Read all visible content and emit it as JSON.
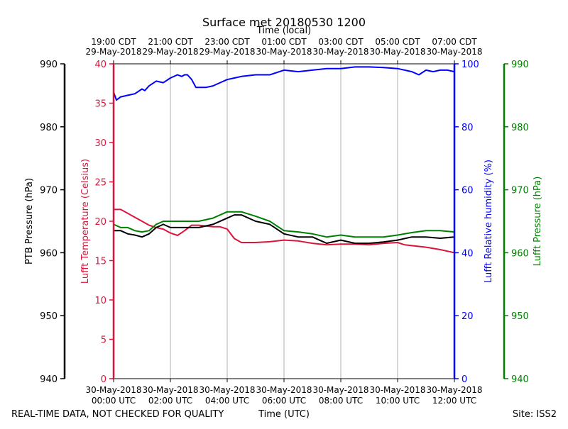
{
  "chart_data": {
    "type": "line",
    "title": "Surface met 20180530 1200",
    "top_axis_label": "Time (local)",
    "top_ticks": [
      {
        "t": 0,
        "line1": "19:00 CDT",
        "line2": "29-May-2018"
      },
      {
        "t": 2,
        "line1": "21:00 CDT",
        "line2": "29-May-2018"
      },
      {
        "t": 4,
        "line1": "23:00 CDT",
        "line2": "29-May-2018"
      },
      {
        "t": 6,
        "line1": "01:00 CDT",
        "line2": "30-May-2018"
      },
      {
        "t": 8,
        "line1": "03:00 CDT",
        "line2": "30-May-2018"
      },
      {
        "t": 10,
        "line1": "05:00 CDT",
        "line2": "30-May-2018"
      },
      {
        "t": 12,
        "line1": "07:00 CDT",
        "line2": "30-May-2018"
      }
    ],
    "bottom_axis_label": "Time (UTC)",
    "bottom_ticks": [
      {
        "t": 0,
        "line1": "30-May-2018",
        "line2": "00:00 UTC"
      },
      {
        "t": 2,
        "line1": "30-May-2018",
        "line2": "02:00 UTC"
      },
      {
        "t": 4,
        "line1": "30-May-2018",
        "line2": "04:00 UTC"
      },
      {
        "t": 6,
        "line1": "30-May-2018",
        "line2": "06:00 UTC"
      },
      {
        "t": 8,
        "line1": "30-May-2018",
        "line2": "08:00 UTC"
      },
      {
        "t": 10,
        "line1": "30-May-2018",
        "line2": "10:00 UTC"
      },
      {
        "t": 12,
        "line1": "30-May-2018",
        "line2": "12:00 UTC"
      }
    ],
    "xlim": [
      0,
      12
    ],
    "grid": true,
    "axes": {
      "ptb": {
        "label": "PTB Pressure (hPa)",
        "ylim": [
          940,
          990
        ],
        "ticks": [
          940,
          950,
          960,
          970,
          980,
          990
        ],
        "color": "#000000"
      },
      "temp": {
        "label": "Lufft Temperature (Celsius)",
        "ylim": [
          0,
          40
        ],
        "ticks": [
          0,
          5,
          10,
          15,
          20,
          25,
          30,
          35,
          40
        ],
        "color": "#dc143c"
      },
      "rh": {
        "label": "Lufft Relative humidity (%)",
        "ylim": [
          0,
          100
        ],
        "ticks": [
          0,
          20,
          40,
          60,
          80,
          100
        ],
        "color": "#0000ff"
      },
      "lufft_p": {
        "label": "Lufft Pressure (hPa)",
        "ylim": [
          940,
          990
        ],
        "ticks": [
          940,
          950,
          960,
          970,
          980,
          990
        ],
        "color": "#008000"
      }
    },
    "series": [
      {
        "name": "Lufft Relative humidity",
        "axis": "rh",
        "color": "#0000ff",
        "x": [
          0,
          0.1,
          0.25,
          0.5,
          0.75,
          1.0,
          1.1,
          1.25,
          1.5,
          1.75,
          2.0,
          2.25,
          2.4,
          2.5,
          2.6,
          2.75,
          2.9,
          3.0,
          3.25,
          3.5,
          3.75,
          4.0,
          4.25,
          4.5,
          5.0,
          5.5,
          6.0,
          6.5,
          7.0,
          7.5,
          8.0,
          8.5,
          9.0,
          9.5,
          10.0,
          10.5,
          10.75,
          11.0,
          11.25,
          11.5,
          11.75,
          12.0
        ],
        "y": [
          91,
          88.5,
          89.5,
          90,
          90.5,
          92,
          91.5,
          93,
          94.5,
          94,
          95.5,
          96.5,
          96,
          96.5,
          96.5,
          95,
          92.5,
          92.5,
          92.5,
          93,
          94,
          95,
          95.5,
          96,
          96.5,
          96.5,
          98,
          97.5,
          98,
          98.5,
          98.5,
          99,
          99,
          98.8,
          98.5,
          97.5,
          96.5,
          98,
          97.5,
          98,
          98,
          97.5
        ]
      },
      {
        "name": "Lufft Temperature",
        "axis": "temp",
        "color": "#dc143c",
        "x": [
          0,
          0.25,
          0.5,
          0.75,
          1.0,
          1.25,
          1.5,
          1.75,
          2.0,
          2.25,
          2.5,
          2.75,
          3.0,
          3.25,
          3.5,
          3.75,
          4.0,
          4.25,
          4.5,
          5.0,
          5.5,
          6.0,
          6.5,
          7.0,
          7.5,
          8.0,
          8.5,
          9.0,
          9.5,
          10.0,
          10.25,
          10.5,
          11.0,
          11.5,
          11.75,
          12.0
        ],
        "y": [
          21.5,
          21.5,
          21,
          20.5,
          20,
          19.5,
          19.2,
          19,
          18.5,
          18.2,
          18.8,
          19.5,
          19.5,
          19.4,
          19.3,
          19.3,
          19,
          17.8,
          17.3,
          17.3,
          17.4,
          17.6,
          17.5,
          17.2,
          17.0,
          17.1,
          17.1,
          17.0,
          17.2,
          17.3,
          17.0,
          16.9,
          16.7,
          16.4,
          16.2,
          16.0
        ]
      },
      {
        "name": "PTB Pressure",
        "axis": "ptb",
        "color": "#000000",
        "x": [
          0,
          0.25,
          0.5,
          0.75,
          1.0,
          1.25,
          1.5,
          1.75,
          2.0,
          2.5,
          3.0,
          3.5,
          4.0,
          4.25,
          4.5,
          5.0,
          5.5,
          6.0,
          6.5,
          7.0,
          7.5,
          8.0,
          8.5,
          9.0,
          9.5,
          10.0,
          10.5,
          11.0,
          11.5,
          12.0
        ],
        "y": [
          963.5,
          963.5,
          963,
          962.8,
          962.5,
          963,
          964,
          964.5,
          964,
          964,
          964,
          964.5,
          965.5,
          966,
          966,
          965,
          964.5,
          963,
          962.5,
          962.5,
          961.5,
          962,
          961.5,
          961.5,
          961.7,
          962,
          962.5,
          962.5,
          962.3,
          962.5
        ]
      },
      {
        "name": "Lufft Pressure",
        "axis": "lufft_p",
        "color": "#008000",
        "x": [
          0,
          0.25,
          0.5,
          0.75,
          1.0,
          1.25,
          1.5,
          1.75,
          2.0,
          2.5,
          3.0,
          3.5,
          4.0,
          4.25,
          4.5,
          5.0,
          5.5,
          6.0,
          6.5,
          7.0,
          7.5,
          8.0,
          8.5,
          9.0,
          9.5,
          10.0,
          10.5,
          11.0,
          11.5,
          12.0
        ],
        "y": [
          964.5,
          964,
          964,
          963.5,
          963.3,
          963.5,
          964.5,
          965,
          965,
          965,
          965,
          965.5,
          966.5,
          966.5,
          966.5,
          965.8,
          965,
          963.5,
          963.3,
          963,
          962.5,
          962.8,
          962.5,
          962.5,
          962.5,
          962.8,
          963.2,
          963.5,
          963.5,
          963.3
        ]
      }
    ]
  },
  "footer": {
    "left": "REAL-TIME DATA, NOT CHECKED FOR QUALITY",
    "right": "Site: ISS2"
  }
}
